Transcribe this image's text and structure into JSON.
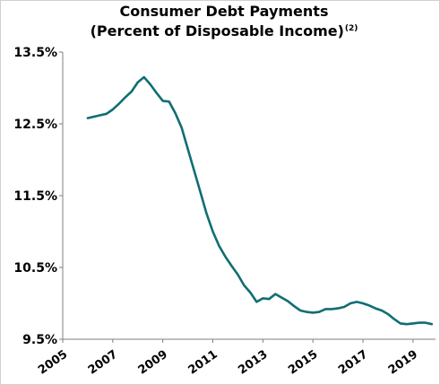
{
  "chart_data": {
    "type": "line",
    "title": "Consumer Debt Payments",
    "subtitle": "(Percent of Disposable Income)",
    "subtitle_note": "(2)",
    "xlabel": "",
    "ylabel": "",
    "xlim": [
      2005,
      2019.9
    ],
    "ylim": [
      9.5,
      13.5
    ],
    "grid": false,
    "legend": "none",
    "y_ticks": [
      {
        "value": 13.5,
        "label": "13.5%"
      },
      {
        "value": 12.5,
        "label": "12.5%"
      },
      {
        "value": 11.5,
        "label": "11.5%"
      },
      {
        "value": 10.5,
        "label": "10.5%"
      },
      {
        "value": 9.5,
        "label": "9.5%"
      }
    ],
    "x_ticks": [
      {
        "value": 2005,
        "label": "2005"
      },
      {
        "value": 2007,
        "label": "2007"
      },
      {
        "value": 2009,
        "label": "2009"
      },
      {
        "value": 2011,
        "label": "2011"
      },
      {
        "value": 2013,
        "label": "2013"
      },
      {
        "value": 2015,
        "label": "2015"
      },
      {
        "value": 2017,
        "label": "2017"
      },
      {
        "value": 2019,
        "label": "2019"
      }
    ],
    "series": [
      {
        "color": "#0f6e73",
        "x": [
          2006.0,
          2006.25,
          2006.5,
          2006.75,
          2007.0,
          2007.25,
          2007.5,
          2007.75,
          2008.0,
          2008.25,
          2008.5,
          2008.75,
          2009.0,
          2009.25,
          2009.5,
          2009.75,
          2010.0,
          2010.25,
          2010.5,
          2010.75,
          2011.0,
          2011.25,
          2011.5,
          2011.75,
          2012.0,
          2012.25,
          2012.5,
          2012.75,
          2013.0,
          2013.25,
          2013.5,
          2013.75,
          2014.0,
          2014.25,
          2014.5,
          2014.75,
          2015.0,
          2015.25,
          2015.5,
          2015.75,
          2016.0,
          2016.25,
          2016.5,
          2016.75,
          2017.0,
          2017.25,
          2017.5,
          2017.75,
          2018.0,
          2018.25,
          2018.5,
          2018.75,
          2019.0,
          2019.25,
          2019.5,
          2019.75
        ],
        "y": [
          12.58,
          12.6,
          12.62,
          12.64,
          12.7,
          12.78,
          12.87,
          12.95,
          13.08,
          13.15,
          13.05,
          12.93,
          12.82,
          12.81,
          12.65,
          12.45,
          12.15,
          11.85,
          11.55,
          11.25,
          11.0,
          10.8,
          10.65,
          10.52,
          10.4,
          10.25,
          10.15,
          10.02,
          10.07,
          10.06,
          10.13,
          10.08,
          10.03,
          9.96,
          9.9,
          9.88,
          9.87,
          9.88,
          9.92,
          9.92,
          9.93,
          9.95,
          10.0,
          10.02,
          10.0,
          9.97,
          9.93,
          9.9,
          9.85,
          9.78,
          9.72,
          9.71,
          9.72,
          9.73,
          9.73,
          9.71
        ]
      }
    ]
  }
}
